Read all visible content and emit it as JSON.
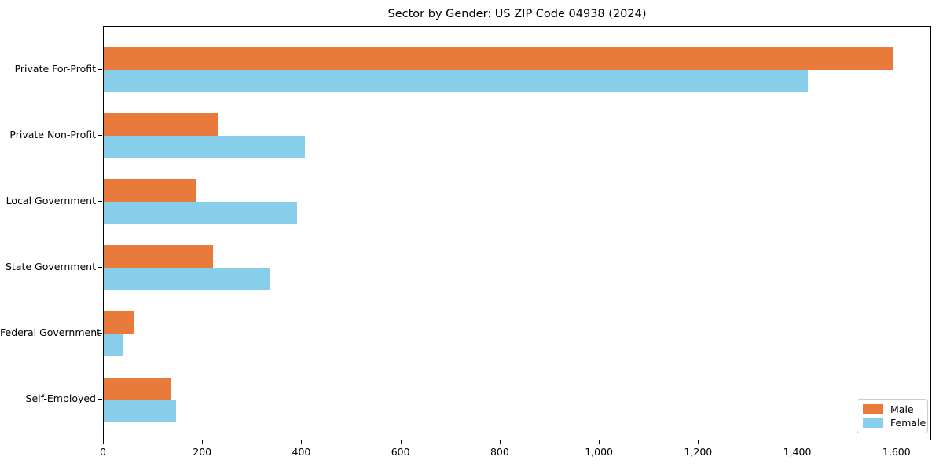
{
  "title": "Sector by Gender: US ZIP Code 04938 (2024)",
  "colors": {
    "male": "#E87B3C",
    "female": "#87CEEB",
    "axis": "#000000",
    "legend_border": "#cccccc",
    "background": "#ffffff"
  },
  "legend": {
    "position": "lower right",
    "items": [
      {
        "name": "male",
        "label": "Male",
        "color": "#E87B3C"
      },
      {
        "name": "female",
        "label": "Female",
        "color": "#87CEEB"
      }
    ]
  },
  "chart_data": {
    "type": "bar",
    "orientation": "horizontal",
    "title": "Sector by Gender: US ZIP Code 04938 (2024)",
    "categories": [
      "Private For-Profit",
      "Private Non-Profit",
      "Local Government",
      "State Government",
      "Federal Government",
      "Self-Employed"
    ],
    "series": [
      {
        "name": "Male",
        "color": "#E87B3C",
        "values": [
          1590,
          230,
          185,
          220,
          60,
          135
        ]
      },
      {
        "name": "Female",
        "color": "#87CEEB",
        "values": [
          1420,
          405,
          390,
          335,
          40,
          145
        ]
      }
    ],
    "xlabel": "",
    "ylabel": "",
    "xlim": [
      0,
      1670
    ],
    "x_ticks": [
      0,
      200,
      400,
      600,
      800,
      1000,
      1200,
      1400,
      1600
    ],
    "x_tick_labels": [
      "0",
      "200",
      "400",
      "600",
      "800",
      "1,000",
      "1,200",
      "1,400",
      "1,600"
    ],
    "grid": false,
    "legend_position": "lower right"
  }
}
